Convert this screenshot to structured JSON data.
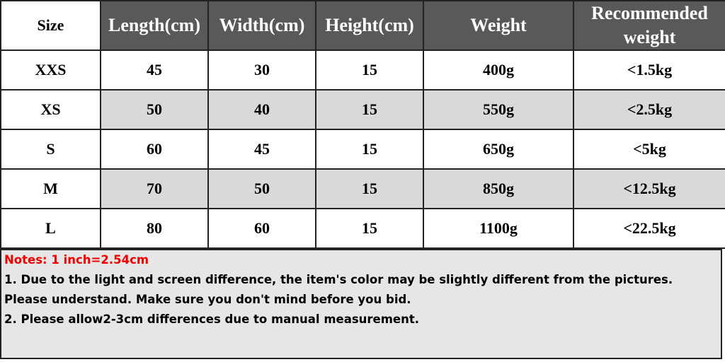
{
  "table": {
    "header": [
      "Size",
      "Length(cm)",
      "Width(cm)",
      "Height(cm)",
      "Weight",
      "Recommended weight"
    ],
    "rows": [
      [
        "XXS",
        "45",
        "30",
        "15",
        "400g",
        "<1.5kg"
      ],
      [
        "XS",
        "50",
        "40",
        "15",
        "550g",
        "<2.5kg"
      ],
      [
        "S",
        "60",
        "45",
        "15",
        "650g",
        "<5kg"
      ],
      [
        "M",
        "70",
        "50",
        "15",
        "850g",
        "<12.5kg"
      ],
      [
        "L",
        "80",
        "60",
        "15",
        "1100g",
        "<22.5kg"
      ]
    ]
  },
  "notes": {
    "title": "Notes: 1 inch=2.54cm",
    "lines": [
      "1. Due to the light and screen difference, the item's color may be slightly different from the pictures. Please understand. Make sure you don't mind before you bid.",
      "2. Please allow2-3cm differences due to manual measurement."
    ]
  }
}
